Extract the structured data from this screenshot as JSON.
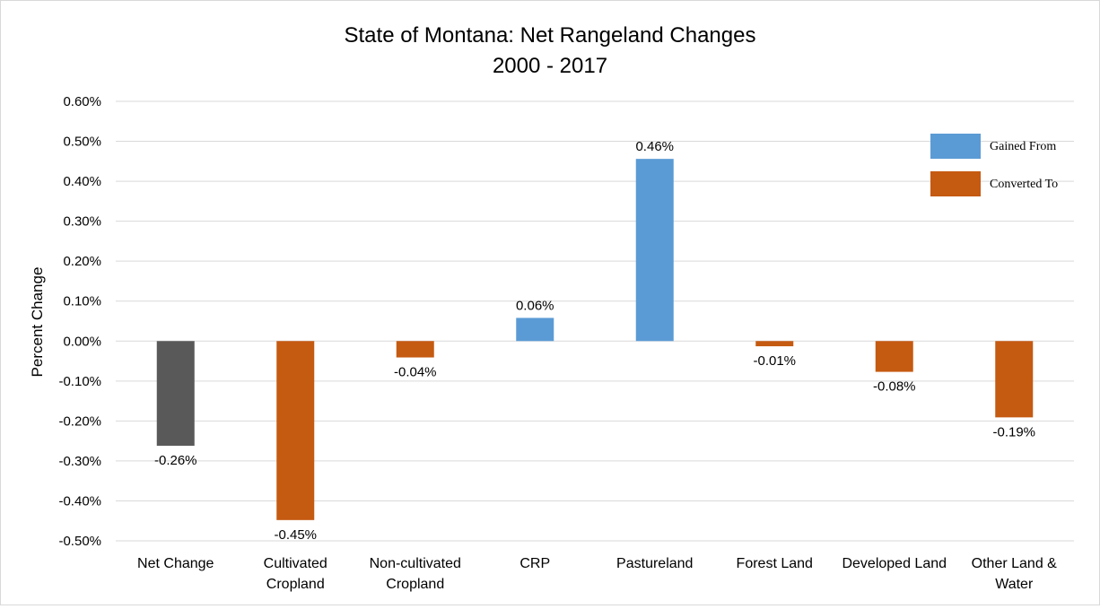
{
  "chart_data": {
    "type": "bar",
    "title_line1": "State of Montana: Net Rangeland Changes",
    "title_line2": "2000 - 2017",
    "xlabel": "",
    "ylabel": "Percent Change",
    "ylim": [
      -0.5,
      0.6
    ],
    "ytick_step": 0.1,
    "yticks": [
      "0.60%",
      "0.50%",
      "0.40%",
      "0.30%",
      "0.20%",
      "0.10%",
      "0.00%",
      "-0.10%",
      "-0.20%",
      "-0.30%",
      "-0.40%",
      "-0.50%"
    ],
    "grid": true,
    "legend_position": "top-right",
    "legend": [
      {
        "label": "Gained From",
        "color": "#5b9bd5"
      },
      {
        "label": "Converted To",
        "color": "#c55a11"
      }
    ],
    "categories": [
      [
        "Net Change"
      ],
      [
        "Cultivated",
        "Cropland"
      ],
      [
        "Non-cultivated",
        "Cropland"
      ],
      [
        "CRP"
      ],
      [
        "Pastureland"
      ],
      [
        "Forest Land"
      ],
      [
        "Developed Land"
      ],
      [
        "Other Land &",
        "Water"
      ]
    ],
    "values": [
      -0.262,
      -0.448,
      -0.041,
      0.058,
      0.456,
      -0.013,
      -0.077,
      -0.191
    ],
    "data_labels": [
      "-0.26%",
      "-0.45%",
      "-0.04%",
      "0.06%",
      "0.46%",
      "-0.01%",
      "-0.08%",
      "-0.19%"
    ],
    "bar_colors": [
      "#595959",
      "#c55a11",
      "#c55a11",
      "#5b9bd5",
      "#5b9bd5",
      "#c55a11",
      "#c55a11",
      "#c55a11"
    ]
  }
}
